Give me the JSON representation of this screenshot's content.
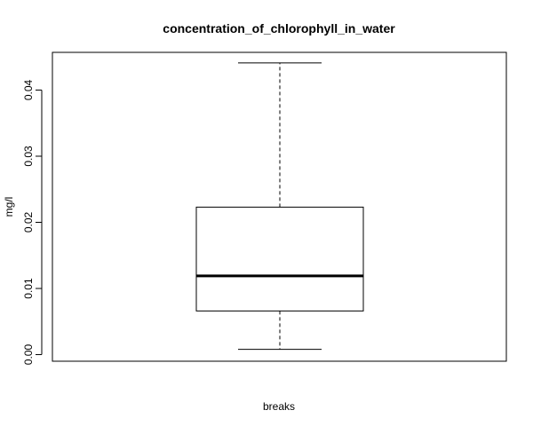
{
  "chart_data": {
    "type": "boxplot",
    "title": "concentration_of_chlorophyll_in_water",
    "xlabel": "breaks",
    "ylabel": "mg/l",
    "ylim": [
      -0.001,
      0.0457
    ],
    "yticks": [
      0.0,
      0.01,
      0.02,
      0.03,
      0.04
    ],
    "ytick_labels": [
      "0.00",
      "0.01",
      "0.02",
      "0.03",
      "0.04"
    ],
    "grid": false,
    "box": {
      "whisker_low": 0.0008,
      "q1": 0.0066,
      "median": 0.0119,
      "q3": 0.0223,
      "whisker_high": 0.0441
    }
  }
}
